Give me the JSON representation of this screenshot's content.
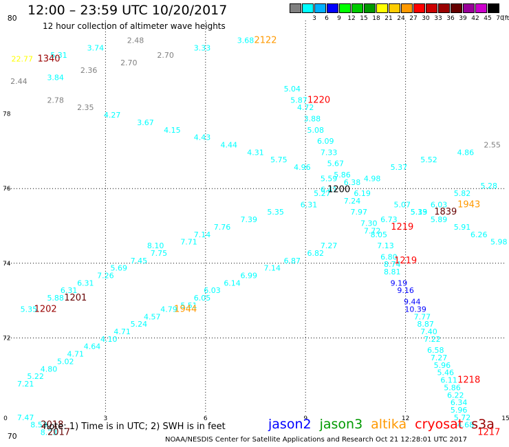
{
  "header": {
    "title": "12:00 – 23:59 UTC 10/20/2017",
    "subtitle": "12 hour collection of altimeter wave heights"
  },
  "legend": {
    "unit": "(ft)",
    "swatches": [
      {
        "color": "#808080",
        "label": ""
      },
      {
        "color": "#00ffff",
        "label": "3"
      },
      {
        "color": "#00b0ff",
        "label": "6"
      },
      {
        "color": "#0000ff",
        "label": "9"
      },
      {
        "color": "#00ff00",
        "label": "12"
      },
      {
        "color": "#00cc00",
        "label": "15"
      },
      {
        "color": "#009900",
        "label": "18"
      },
      {
        "color": "#ffff00",
        "label": "21"
      },
      {
        "color": "#ffcc00",
        "label": "24"
      },
      {
        "color": "#ff9900",
        "label": "27"
      },
      {
        "color": "#ff0000",
        "label": "30"
      },
      {
        "color": "#cc0000",
        "label": "33"
      },
      {
        "color": "#990000",
        "label": "36"
      },
      {
        "color": "#660000",
        "label": "39"
      },
      {
        "color": "#990099",
        "label": "42"
      },
      {
        "color": "#cc00cc",
        "label": "45"
      },
      {
        "color": "#000000",
        "label": "70"
      }
    ]
  },
  "axes": {
    "x_ticks": [
      "0",
      "3",
      "6",
      "9",
      "12",
      "15"
    ],
    "y_ticks": [
      "70",
      "72",
      "74",
      "76",
      "78",
      "80"
    ]
  },
  "wave_heights": [
    {
      "lon": 0.2,
      "lat": 80.5,
      "value": "80",
      "color": "#000000"
    },
    {
      "lon": 0.5,
      "lat": 79.4,
      "value": "22.77",
      "color": "#ffff00"
    },
    {
      "lon": 1.6,
      "lat": 79.5,
      "value": "5.31",
      "color": "#00ffff"
    },
    {
      "lon": 2.7,
      "lat": 79.7,
      "value": "3.74",
      "color": "#00ffff"
    },
    {
      "lon": 3.9,
      "lat": 79.9,
      "value": "2.48",
      "color": "#808080"
    },
    {
      "lon": 4.8,
      "lat": 79.5,
      "value": "2.70",
      "color": "#808080"
    },
    {
      "lon": 5.9,
      "lat": 79.7,
      "value": "3.33",
      "color": "#00ffff"
    },
    {
      "lon": 7.2,
      "lat": 79.9,
      "value": "3.68",
      "color": "#00ffff"
    },
    {
      "lon": 2.5,
      "lat": 79.1,
      "value": "2.36",
      "color": "#808080"
    },
    {
      "lon": 3.7,
      "lat": 79.3,
      "value": "2.70",
      "color": "#808080"
    },
    {
      "lon": 0.4,
      "lat": 78.8,
      "value": "2.44",
      "color": "#808080"
    },
    {
      "lon": 1.5,
      "lat": 78.9,
      "value": "3.84",
      "color": "#00ffff"
    },
    {
      "lon": 1.5,
      "lat": 78.3,
      "value": "2.78",
      "color": "#808080"
    },
    {
      "lon": 2.4,
      "lat": 78.1,
      "value": "2.35",
      "color": "#808080"
    },
    {
      "lon": 3.2,
      "lat": 77.9,
      "value": "4.27",
      "color": "#00ffff"
    },
    {
      "lon": 4.2,
      "lat": 77.7,
      "value": "3.67",
      "color": "#00ffff"
    },
    {
      "lon": 5.0,
      "lat": 77.5,
      "value": "4.15",
      "color": "#00ffff"
    },
    {
      "lon": 5.9,
      "lat": 77.3,
      "value": "4.43",
      "color": "#00ffff"
    },
    {
      "lon": 6.7,
      "lat": 77.1,
      "value": "4.44",
      "color": "#00ffff"
    },
    {
      "lon": 7.5,
      "lat": 76.9,
      "value": "4.31",
      "color": "#00ffff"
    },
    {
      "lon": 8.2,
      "lat": 76.7,
      "value": "5.75",
      "color": "#00ffff"
    },
    {
      "lon": 8.9,
      "lat": 76.5,
      "value": "4.96",
      "color": "#00ffff"
    },
    {
      "lon": 8.6,
      "lat": 78.6,
      "value": "5.04",
      "color": "#00ffff"
    },
    {
      "lon": 8.8,
      "lat": 78.3,
      "value": "5.87",
      "color": "#00ffff"
    },
    {
      "lon": 9.0,
      "lat": 78.1,
      "value": "4.72",
      "color": "#00ffff"
    },
    {
      "lon": 9.2,
      "lat": 77.8,
      "value": "3.88",
      "color": "#00ffff"
    },
    {
      "lon": 9.3,
      "lat": 77.5,
      "value": "5.08",
      "color": "#00ffff"
    },
    {
      "lon": 9.6,
      "lat": 77.2,
      "value": "6.09",
      "color": "#00ffff"
    },
    {
      "lon": 9.7,
      "lat": 76.9,
      "value": "7.33",
      "color": "#00ffff"
    },
    {
      "lon": 9.9,
      "lat": 76.6,
      "value": "5.67",
      "color": "#00ffff"
    },
    {
      "lon": 10.1,
      "lat": 76.3,
      "value": "5.86",
      "color": "#00ffff"
    },
    {
      "lon": 9.7,
      "lat": 76.2,
      "value": "5.59",
      "color": "#00ffff"
    },
    {
      "lon": 9.5,
      "lat": 75.8,
      "value": "5.27",
      "color": "#00ffff"
    },
    {
      "lon": 9.7,
      "lat": 75.9,
      "value": "6.41",
      "color": "#00ffff"
    },
    {
      "lon": 10.4,
      "lat": 76.1,
      "value": "6.38",
      "color": "#00ffff"
    },
    {
      "lon": 10.7,
      "lat": 75.8,
      "value": "6.19",
      "color": "#00ffff"
    },
    {
      "lon": 11.0,
      "lat": 76.2,
      "value": "4.98",
      "color": "#00ffff"
    },
    {
      "lon": 11.8,
      "lat": 76.5,
      "value": "5.37",
      "color": "#00ffff"
    },
    {
      "lon": 12.7,
      "lat": 76.7,
      "value": "5.52",
      "color": "#00ffff"
    },
    {
      "lon": 13.8,
      "lat": 76.9,
      "value": "4.86",
      "color": "#00ffff"
    },
    {
      "lon": 14.6,
      "lat": 77.1,
      "value": "2.55",
      "color": "#808080"
    },
    {
      "lon": 14.5,
      "lat": 76.0,
      "value": "5.28",
      "color": "#00ffff"
    },
    {
      "lon": 13.7,
      "lat": 75.8,
      "value": "5.82",
      "color": "#00ffff"
    },
    {
      "lon": 13.0,
      "lat": 75.5,
      "value": "6.03",
      "color": "#00ffff"
    },
    {
      "lon": 11.9,
      "lat": 75.5,
      "value": "5.07",
      "color": "#00ffff"
    },
    {
      "lon": 12.4,
      "lat": 75.3,
      "value": "5.33",
      "color": "#00ffff"
    },
    {
      "lon": 12.4,
      "lat": 75.3,
      "value": "5.19",
      "color": "#00ffff"
    },
    {
      "lon": 13.0,
      "lat": 75.1,
      "value": "5.89",
      "color": "#00ffff"
    },
    {
      "lon": 13.7,
      "lat": 74.9,
      "value": "5.91",
      "color": "#00ffff"
    },
    {
      "lon": 14.2,
      "lat": 74.7,
      "value": "6.26",
      "color": "#00ffff"
    },
    {
      "lon": 14.8,
      "lat": 74.5,
      "value": "5.98",
      "color": "#00ffff"
    },
    {
      "lon": 9.1,
      "lat": 75.5,
      "value": "6.31",
      "color": "#00ffff"
    },
    {
      "lon": 8.1,
      "lat": 75.3,
      "value": "5.35",
      "color": "#00ffff"
    },
    {
      "lon": 7.3,
      "lat": 75.1,
      "value": "7.39",
      "color": "#00ffff"
    },
    {
      "lon": 6.5,
      "lat": 74.9,
      "value": "7.76",
      "color": "#00ffff"
    },
    {
      "lon": 5.9,
      "lat": 74.7,
      "value": "7.14",
      "color": "#00ffff"
    },
    {
      "lon": 5.5,
      "lat": 74.5,
      "value": "7.71",
      "color": "#00ffff"
    },
    {
      "lon": 4.5,
      "lat": 74.4,
      "value": "8.10",
      "color": "#00ffff"
    },
    {
      "lon": 4.6,
      "lat": 74.2,
      "value": "7.75",
      "color": "#00ffff"
    },
    {
      "lon": 4.0,
      "lat": 74.0,
      "value": "7.45",
      "color": "#00ffff"
    },
    {
      "lon": 3.4,
      "lat": 73.8,
      "value": "5.69",
      "color": "#00ffff"
    },
    {
      "lon": 3.0,
      "lat": 73.6,
      "value": "7.26",
      "color": "#00ffff"
    },
    {
      "lon": 2.4,
      "lat": 73.4,
      "value": "6.31",
      "color": "#00ffff"
    },
    {
      "lon": 1.9,
      "lat": 73.2,
      "value": "6.31",
      "color": "#00ffff"
    },
    {
      "lon": 1.5,
      "lat": 73.0,
      "value": "5.88",
      "color": "#00ffff"
    },
    {
      "lon": 0.7,
      "lat": 72.7,
      "value": "5.35",
      "color": "#00ffff"
    },
    {
      "lon": 10.4,
      "lat": 75.6,
      "value": "7.24",
      "color": "#00ffff"
    },
    {
      "lon": 10.6,
      "lat": 75.3,
      "value": "7.97",
      "color": "#00ffff"
    },
    {
      "lon": 10.9,
      "lat": 75.0,
      "value": "7.30",
      "color": "#00ffff"
    },
    {
      "lon": 11.0,
      "lat": 74.8,
      "value": "7.72",
      "color": "#00ffff"
    },
    {
      "lon": 11.2,
      "lat": 74.7,
      "value": "8.05",
      "color": "#00ffff"
    },
    {
      "lon": 11.5,
      "lat": 75.1,
      "value": "6.73",
      "color": "#00ffff"
    },
    {
      "lon": 11.4,
      "lat": 74.4,
      "value": "7.13",
      "color": "#00ffff"
    },
    {
      "lon": 11.5,
      "lat": 74.1,
      "value": "6.80",
      "color": "#00ffff"
    },
    {
      "lon": 11.6,
      "lat": 73.9,
      "value": "8.74",
      "color": "#00ffff"
    },
    {
      "lon": 11.6,
      "lat": 73.7,
      "value": "8.81",
      "color": "#00ffff"
    },
    {
      "lon": 11.8,
      "lat": 73.4,
      "value": "9.19",
      "color": "#0000ff"
    },
    {
      "lon": 12.0,
      "lat": 73.2,
      "value": "9.16",
      "color": "#0000ff"
    },
    {
      "lon": 12.2,
      "lat": 72.9,
      "value": "9.44",
      "color": "#0000ff"
    },
    {
      "lon": 12.3,
      "lat": 72.7,
      "value": "10.39",
      "color": "#0000ff"
    },
    {
      "lon": 12.5,
      "lat": 72.5,
      "value": "7.77",
      "color": "#00ffff"
    },
    {
      "lon": 12.6,
      "lat": 72.3,
      "value": "8.87",
      "color": "#00ffff"
    },
    {
      "lon": 12.7,
      "lat": 72.1,
      "value": "7.40",
      "color": "#00ffff"
    },
    {
      "lon": 12.8,
      "lat": 71.9,
      "value": "7.22",
      "color": "#00ffff"
    },
    {
      "lon": 12.9,
      "lat": 71.6,
      "value": "6.58",
      "color": "#00ffff"
    },
    {
      "lon": 13.0,
      "lat": 71.4,
      "value": "7.27",
      "color": "#00ffff"
    },
    {
      "lon": 13.1,
      "lat": 71.2,
      "value": "5.96",
      "color": "#00ffff"
    },
    {
      "lon": 13.2,
      "lat": 71.0,
      "value": "5.46",
      "color": "#00ffff"
    },
    {
      "lon": 13.3,
      "lat": 70.8,
      "value": "6.11",
      "color": "#00ffff"
    },
    {
      "lon": 13.4,
      "lat": 70.6,
      "value": "5.86",
      "color": "#00ffff"
    },
    {
      "lon": 13.5,
      "lat": 70.4,
      "value": "6.22",
      "color": "#00ffff"
    },
    {
      "lon": 13.6,
      "lat": 70.2,
      "value": "6.34",
      "color": "#00ffff"
    },
    {
      "lon": 13.6,
      "lat": 70.0,
      "value": "5.96",
      "color": "#00ffff"
    },
    {
      "lon": 13.7,
      "lat": 69.8,
      "value": "5.72",
      "color": "#00ffff"
    },
    {
      "lon": 13.8,
      "lat": 69.6,
      "value": "4.68",
      "color": "#00ffff"
    },
    {
      "lon": 9.7,
      "lat": 74.4,
      "value": "7.27",
      "color": "#00ffff"
    },
    {
      "lon": 9.3,
      "lat": 74.2,
      "value": "6.82",
      "color": "#00ffff"
    },
    {
      "lon": 8.6,
      "lat": 74.0,
      "value": "6.87",
      "color": "#00ffff"
    },
    {
      "lon": 8.0,
      "lat": 73.8,
      "value": "7.14",
      "color": "#00ffff"
    },
    {
      "lon": 7.3,
      "lat": 73.6,
      "value": "6.99",
      "color": "#00ffff"
    },
    {
      "lon": 6.8,
      "lat": 73.4,
      "value": "6.14",
      "color": "#00ffff"
    },
    {
      "lon": 6.2,
      "lat": 73.2,
      "value": "6.03",
      "color": "#00ffff"
    },
    {
      "lon": 5.9,
      "lat": 73.0,
      "value": "6.05",
      "color": "#00ffff"
    },
    {
      "lon": 5.5,
      "lat": 72.8,
      "value": "5.51",
      "color": "#00ffff"
    },
    {
      "lon": 4.9,
      "lat": 72.7,
      "value": "4.79",
      "color": "#00ffff"
    },
    {
      "lon": 4.4,
      "lat": 72.5,
      "value": "4.57",
      "color": "#00ffff"
    },
    {
      "lon": 4.0,
      "lat": 72.3,
      "value": "5.24",
      "color": "#00ffff"
    },
    {
      "lon": 3.5,
      "lat": 72.1,
      "value": "4.71",
      "color": "#00ffff"
    },
    {
      "lon": 3.1,
      "lat": 71.9,
      "value": "4.10",
      "color": "#00ffff"
    },
    {
      "lon": 2.6,
      "lat": 71.7,
      "value": "4.64",
      "color": "#00ffff"
    },
    {
      "lon": 2.1,
      "lat": 71.5,
      "value": "4.71",
      "color": "#00ffff"
    },
    {
      "lon": 1.8,
      "lat": 71.3,
      "value": "5.02",
      "color": "#00ffff"
    },
    {
      "lon": 1.3,
      "lat": 71.1,
      "value": "4.80",
      "color": "#00ffff"
    },
    {
      "lon": 0.9,
      "lat": 70.9,
      "value": "5.22",
      "color": "#00ffff"
    },
    {
      "lon": 0.6,
      "lat": 70.7,
      "value": "7.21",
      "color": "#00ffff"
    },
    {
      "lon": 0.6,
      "lat": 69.8,
      "value": "7.47",
      "color": "#00ffff"
    },
    {
      "lon": 1.0,
      "lat": 69.6,
      "value": "8.53",
      "color": "#00ffff"
    },
    {
      "lon": 1.3,
      "lat": 69.4,
      "value": "8.23",
      "color": "#00ffff"
    },
    {
      "lon": 0.2,
      "lat": 69.3,
      "value": "70",
      "color": "#000000"
    }
  ],
  "pass_times": [
    {
      "lon": 1.3,
      "lat": 79.4,
      "value": "1340",
      "color": "#990000"
    },
    {
      "lon": 7.8,
      "lat": 79.9,
      "value": "2122",
      "color": "#ff9900"
    },
    {
      "lon": 9.4,
      "lat": 78.3,
      "value": "1220",
      "color": "#ff0000"
    },
    {
      "lon": 10.0,
      "lat": 75.9,
      "value": "1200",
      "color": "#000000"
    },
    {
      "lon": 11.9,
      "lat": 74.9,
      "value": "1219",
      "color": "#ff0000"
    },
    {
      "lon": 12.0,
      "lat": 74.0,
      "value": "1219",
      "color": "#ff0000"
    },
    {
      "lon": 13.2,
      "lat": 75.3,
      "value": "1839",
      "color": "#660000"
    },
    {
      "lon": 13.9,
      "lat": 75.5,
      "value": "1943",
      "color": "#ff9900"
    },
    {
      "lon": 2.1,
      "lat": 73.0,
      "value": "1201",
      "color": "#660000"
    },
    {
      "lon": 1.2,
      "lat": 72.7,
      "value": "1202",
      "color": "#990000"
    },
    {
      "lon": 5.4,
      "lat": 72.7,
      "value": "1944",
      "color": "#ff9900"
    },
    {
      "lon": 13.9,
      "lat": 70.8,
      "value": "1218",
      "color": "#ff0000"
    },
    {
      "lon": 1.4,
      "lat": 69.6,
      "value": "2018",
      "color": "#660000"
    },
    {
      "lon": 1.6,
      "lat": 69.4,
      "value": "2017",
      "color": "#660000"
    },
    {
      "lon": 14.5,
      "lat": 69.4,
      "value": "1217",
      "color": "#ff0000"
    }
  ],
  "footer": {
    "note": "note:  1) Time is in UTC;  2) SWH is in feet",
    "satellites": [
      {
        "name": "jason2",
        "color": "#0000ff"
      },
      {
        "name": "jason3",
        "color": "#009900"
      },
      {
        "name": "altika",
        "color": "#ff9900"
      },
      {
        "name": "cryosat",
        "color": "#ff0000"
      },
      {
        "name": "s3a",
        "color": "#990000"
      }
    ],
    "credit": "NOAA/NESDIS Center for Satellite Applications and Research    Oct 21 12:28:01 UTC 2017"
  }
}
